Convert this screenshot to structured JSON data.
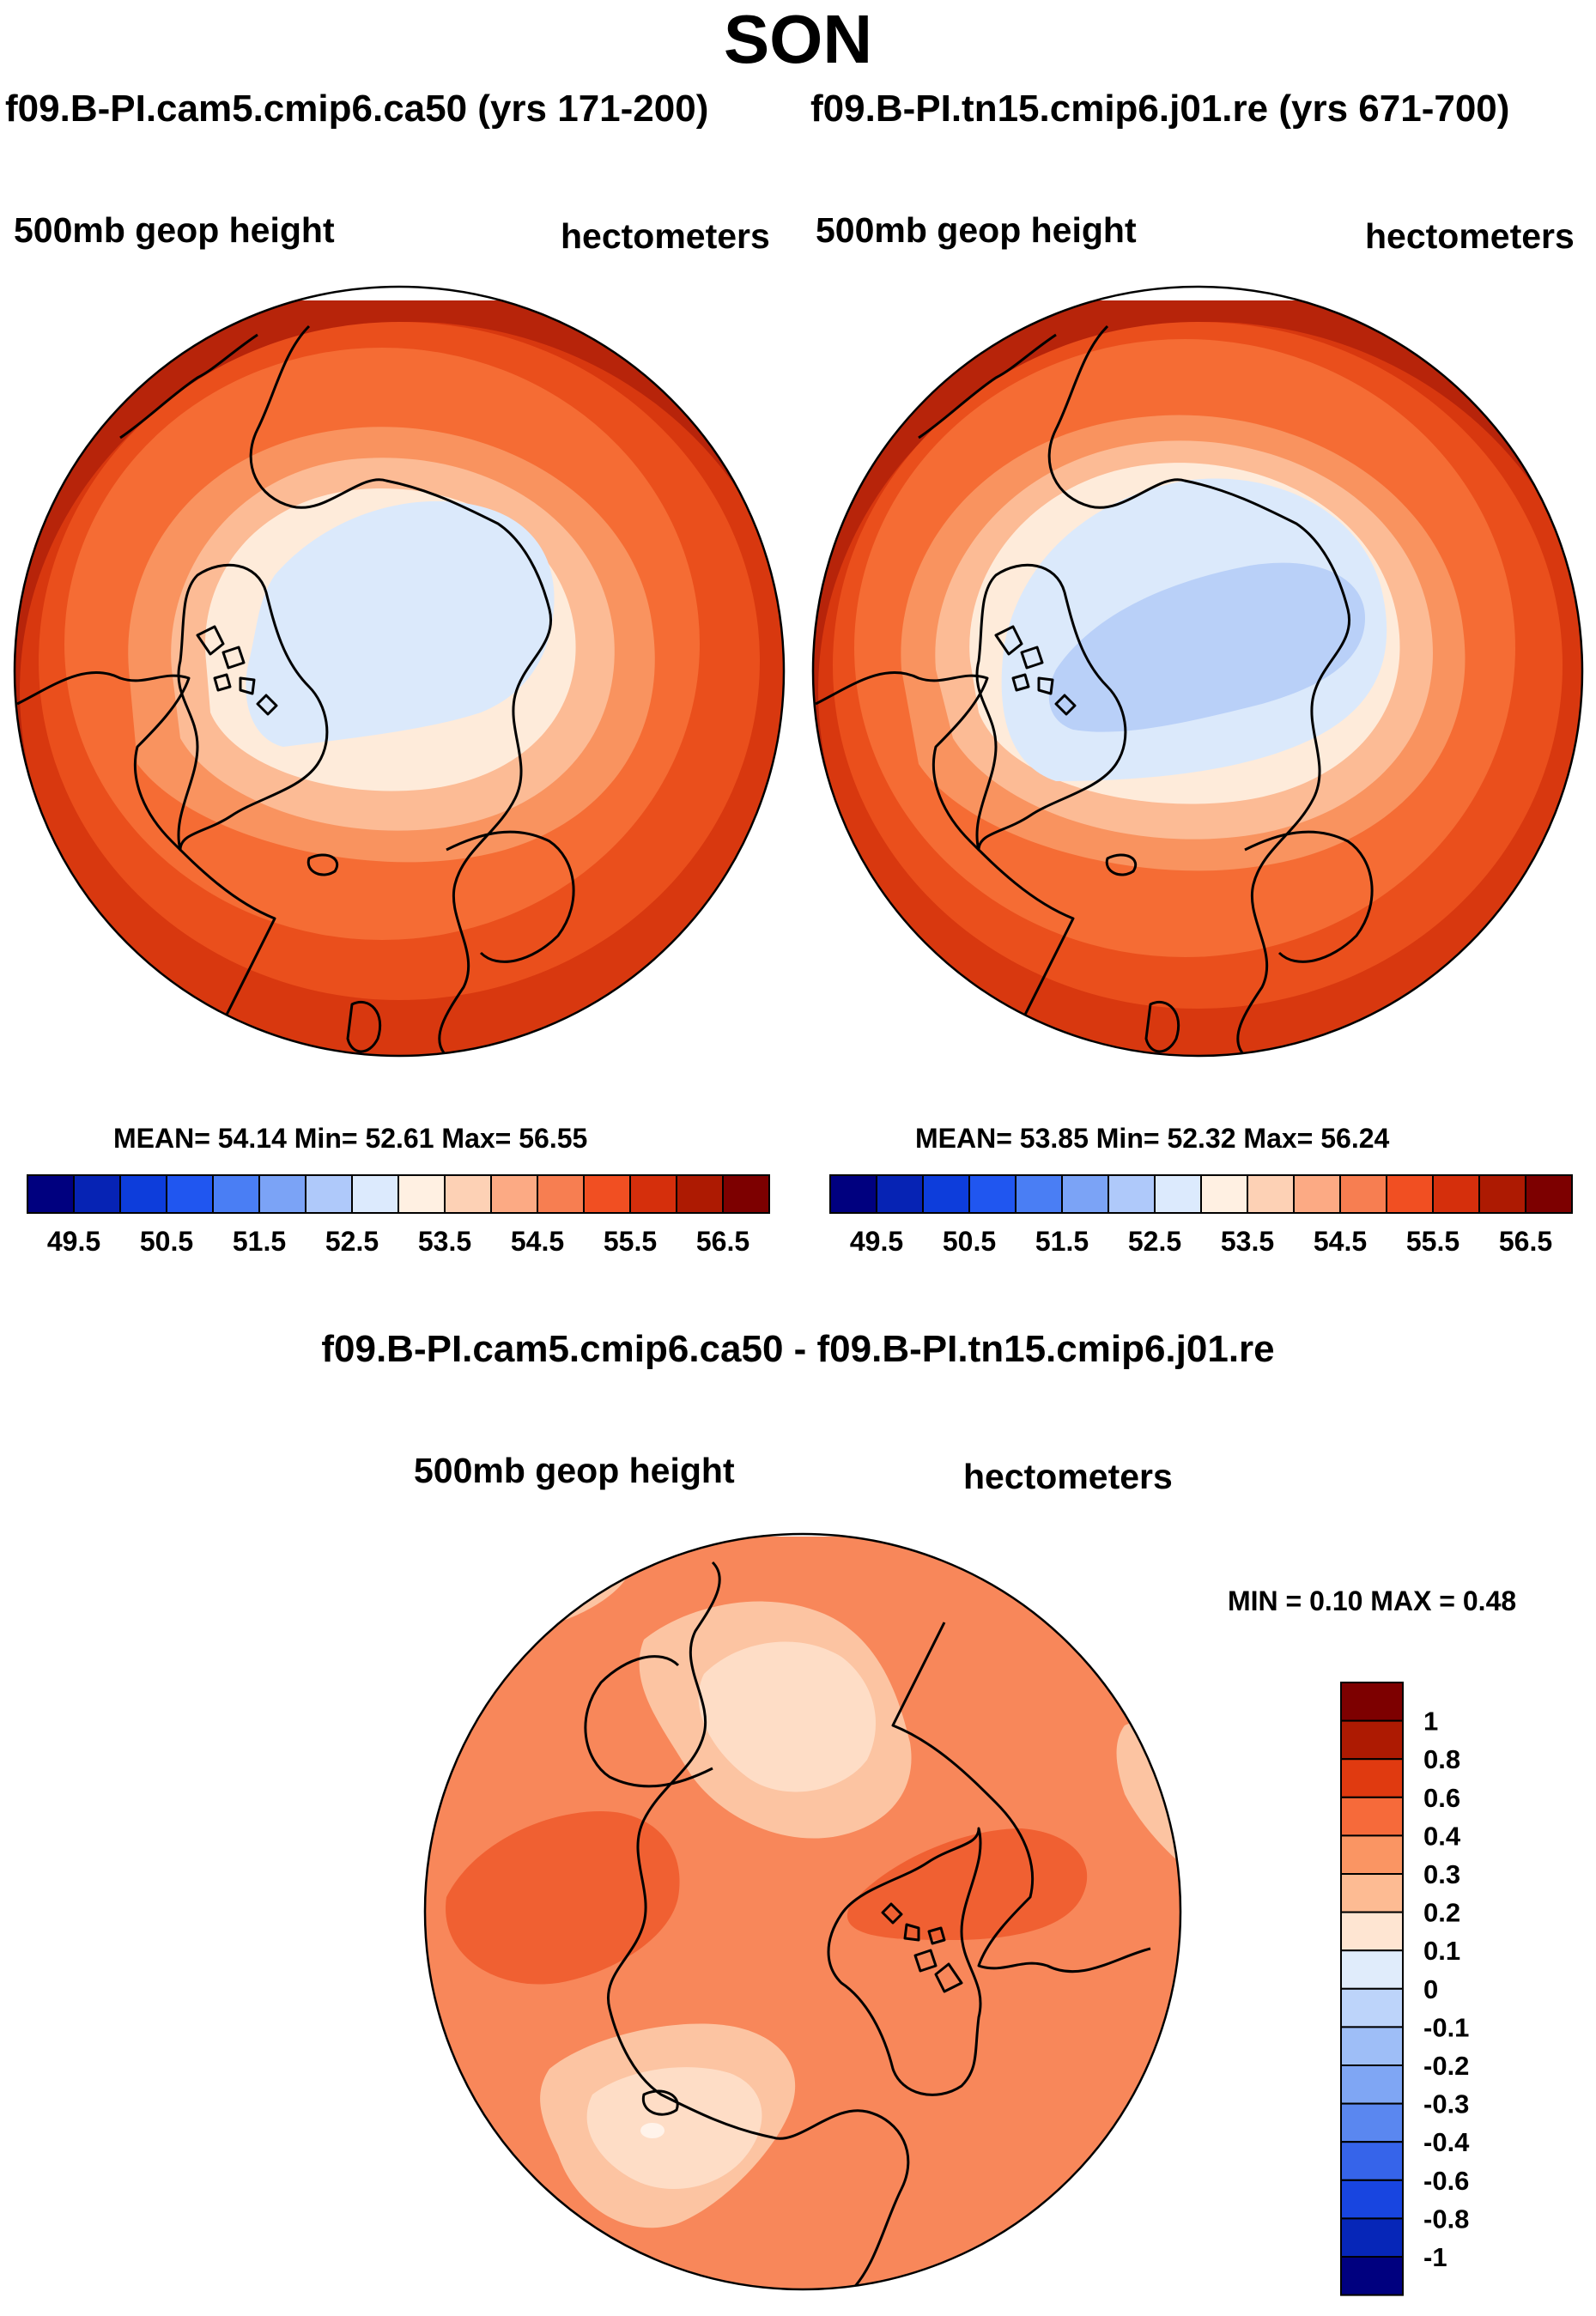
{
  "page": {
    "title": "SON",
    "case1": "f09.B-PI.cam5.cmip6.ca50 (yrs 171-200)",
    "case2": "f09.B-PI.tn15.cmip6.j01.re (yrs 671-700)",
    "diff_title": "f09.B-PI.cam5.cmip6.ca50 - f09.B-PI.tn15.cmip6.j01.re"
  },
  "panels": {
    "left": {
      "field": "500mb geop height",
      "units": "hectometers",
      "stats": "MEAN=  54.14  Min=  52.61  Max=  56.55"
    },
    "right": {
      "field": "500mb geop height",
      "units": "hectometers",
      "stats": "MEAN=  53.85  Min=  52.32  Max=  56.24"
    },
    "diff": {
      "field": "500mb geop height",
      "units": "hectometers",
      "stats": "MIN =   0.10 MAX =   0.48"
    }
  },
  "colorbar_main": {
    "colors": [
      "#00007f",
      "#0623b4",
      "#0d3ddb",
      "#2056f0",
      "#4a7ef4",
      "#7ba3f6",
      "#afc9fa",
      "#dceafd",
      "#fff0e2",
      "#fdd1b5",
      "#fcaa84",
      "#f77e51",
      "#f14f22",
      "#d52f0c",
      "#ad1a02",
      "#7d0000"
    ],
    "labels": [
      "49.5",
      "50.5",
      "51.5",
      "52.5",
      "53.5",
      "54.5",
      "55.5",
      "56.5"
    ]
  },
  "colorbar_diff": {
    "colors": [
      "#7d0000",
      "#ad1a02",
      "#e03a10",
      "#f66a3a",
      "#fa9563",
      "#fdbb93",
      "#fee5d2",
      "#e0ecfb",
      "#bdd4fa",
      "#9ebef7",
      "#7fa6f4",
      "#5a87f0",
      "#3664ea",
      "#1845e0",
      "#0626b8",
      "#00007f"
    ],
    "labels": [
      "1",
      "0.8",
      "0.6",
      "0.4",
      "0.3",
      "0.2",
      "0.1",
      "0",
      "-0.1",
      "-0.2",
      "-0.3",
      "-0.4",
      "-0.6",
      "-0.8",
      "-1"
    ]
  },
  "map_colors": {
    "left_rings": [
      "#b7240a",
      "#d8380f",
      "#ea4f1c",
      "#f56c34",
      "#f9935f",
      "#fcbb95",
      "#feebda",
      "#dbe9fb"
    ],
    "right_rings": [
      "#b7240a",
      "#d8380f",
      "#ea4f1c",
      "#f56c34",
      "#f9935f",
      "#fcbb95",
      "#feebda",
      "#dbe9fb",
      "#b9d0f8"
    ],
    "diff_base": "#f8875a",
    "diff_dark": "#f06032",
    "diff_light": "#fcc4a2",
    "diff_lighter": "#feddc6"
  }
}
